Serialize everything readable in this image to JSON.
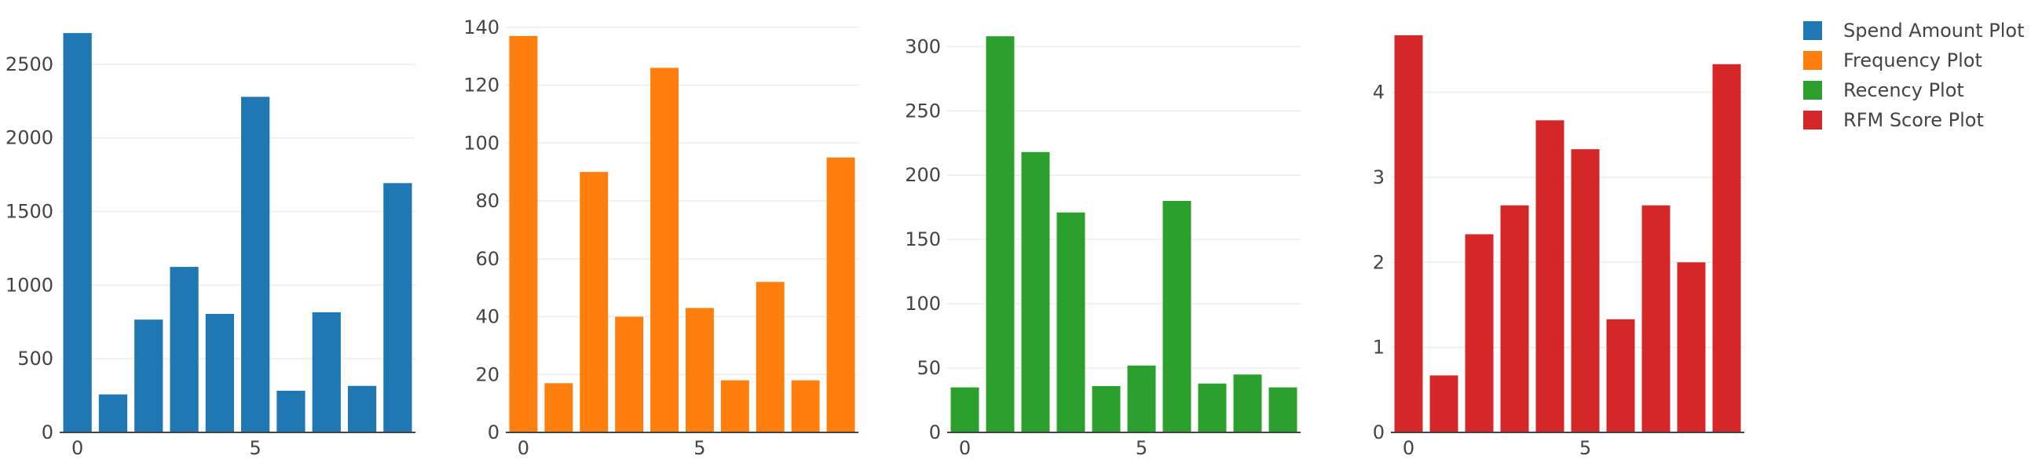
{
  "chart_data": [
    {
      "type": "bar",
      "x": [
        0,
        1,
        2,
        3,
        4,
        5,
        6,
        7,
        8,
        9
      ],
      "x_ticks": [
        0,
        5
      ],
      "series": [
        {
          "name": "Spend Amount Plot",
          "values": [
            2712,
            258,
            766,
            1124,
            805,
            2279,
            283,
            816,
            316,
            1693
          ],
          "color": "#1f77b4"
        }
      ],
      "ylim": [
        0,
        2830
      ],
      "y_ticks": [
        0,
        500,
        1000,
        1500,
        2000,
        2500
      ],
      "grid": true
    },
    {
      "type": "bar",
      "x": [
        0,
        1,
        2,
        3,
        4,
        5,
        6,
        7,
        8,
        9
      ],
      "x_ticks": [
        0,
        5
      ],
      "series": [
        {
          "name": "Frequency Plot",
          "values": [
            137,
            17,
            90,
            40,
            126,
            43,
            18,
            52,
            18,
            95
          ],
          "color": "#ff7f0e"
        }
      ],
      "ylim": [
        0,
        144
      ],
      "y_ticks": [
        0,
        20,
        40,
        60,
        80,
        100,
        120,
        140
      ],
      "grid": true
    },
    {
      "type": "bar",
      "x": [
        0,
        1,
        2,
        3,
        4,
        5,
        6,
        7,
        8,
        9
      ],
      "x_ticks": [
        0,
        5
      ],
      "series": [
        {
          "name": "Recency Plot",
          "values": [
            35,
            308,
            218,
            171,
            36,
            52,
            180,
            38,
            45,
            35
          ],
          "color": "#2ca02c"
        }
      ],
      "ylim": [
        0,
        324
      ],
      "y_ticks": [
        0,
        50,
        100,
        150,
        200,
        250,
        300
      ],
      "grid": true
    },
    {
      "type": "bar",
      "x": [
        0,
        1,
        2,
        3,
        4,
        5,
        6,
        7,
        8,
        9
      ],
      "x_ticks": [
        0,
        5
      ],
      "series": [
        {
          "name": "RFM Score Plot",
          "values": [
            4.67,
            0.67,
            2.33,
            2.67,
            3.67,
            3.33,
            1.33,
            2.67,
            2.0,
            4.33
          ],
          "color": "#d62728"
        }
      ],
      "ylim": [
        0,
        4.9
      ],
      "y_ticks": [
        0,
        1,
        2,
        3,
        4
      ],
      "grid": true
    }
  ],
  "legend": {
    "placement": "top-right",
    "items": [
      {
        "label": "Spend Amount Plot",
        "color": "#1f77b4"
      },
      {
        "label": "Frequency Plot",
        "color": "#ff7f0e"
      },
      {
        "label": "Recency Plot",
        "color": "#2ca02c"
      },
      {
        "label": "RFM Score Plot",
        "color": "#d62728"
      }
    ]
  }
}
